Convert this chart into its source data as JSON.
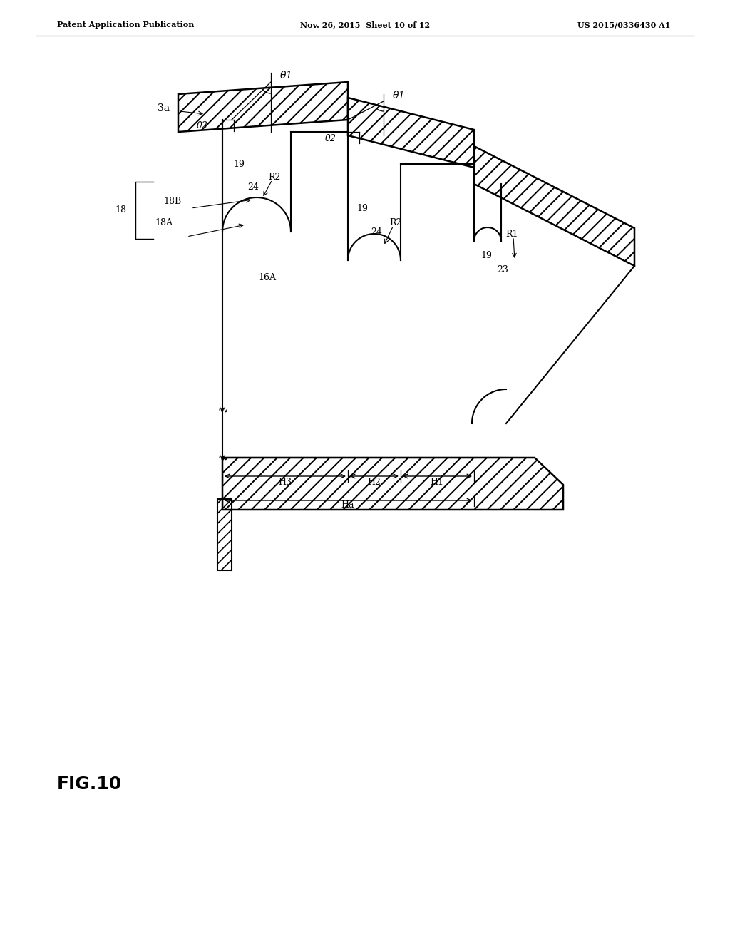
{
  "header_left": "Patent Application Publication",
  "header_center": "Nov. 26, 2015  Sheet 10 of 12",
  "header_right": "US 2015/0336430 A1",
  "fig_label": "FIG.10",
  "bg_color": "#ffffff"
}
